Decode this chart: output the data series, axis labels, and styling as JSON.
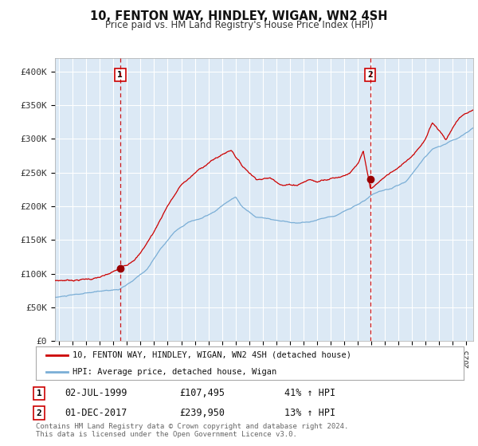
{
  "title": "10, FENTON WAY, HINDLEY, WIGAN, WN2 4SH",
  "subtitle": "Price paid vs. HM Land Registry's House Price Index (HPI)",
  "bg_color": "#dce9f5",
  "red_line_color": "#cc0000",
  "blue_line_color": "#7aaed6",
  "marker_color": "#990000",
  "sale1_date": 1999.5,
  "sale1_price": 107495,
  "sale1_label": "02-JUL-1999",
  "sale1_amount": "£107,495",
  "sale1_hpi": "41% ↑ HPI",
  "sale2_date": 2017.917,
  "sale2_price": 239950,
  "sale2_label": "01-DEC-2017",
  "sale2_amount": "£239,950",
  "sale2_hpi": "13% ↑ HPI",
  "tick_color": "#333333",
  "grid_color": "#ffffff",
  "vline_color": "#cc0000",
  "legend_label1": "10, FENTON WAY, HINDLEY, WIGAN, WN2 4SH (detached house)",
  "legend_label2": "HPI: Average price, detached house, Wigan",
  "copyright_text": "Contains HM Land Registry data © Crown copyright and database right 2024.\nThis data is licensed under the Open Government Licence v3.0.",
  "ylim": [
    0,
    420000
  ],
  "yticks": [
    0,
    50000,
    100000,
    150000,
    200000,
    250000,
    300000,
    350000,
    400000
  ],
  "ytick_labels": [
    "£0",
    "£50K",
    "£100K",
    "£150K",
    "£200K",
    "£250K",
    "£300K",
    "£350K",
    "£400K"
  ],
  "xlim_start": 1994.7,
  "xlim_end": 2025.5
}
